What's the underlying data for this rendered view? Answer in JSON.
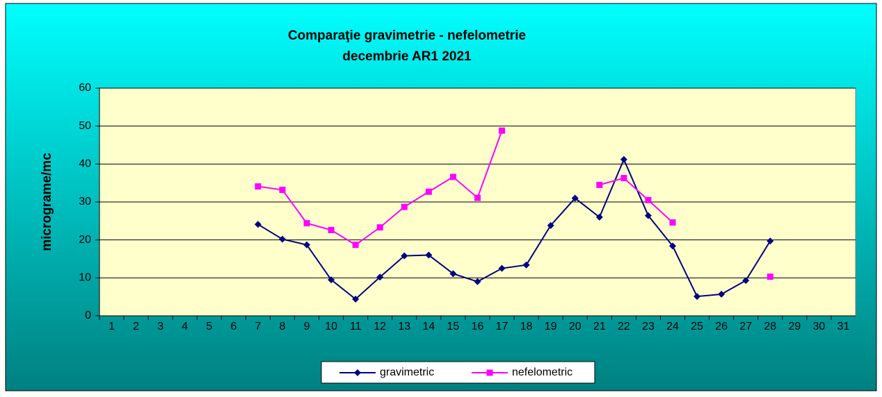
{
  "chart_data": {
    "type": "line",
    "title": [
      "Comparaţie gravimetrie - nefelometrie",
      "decembrie AR1 2021"
    ],
    "ylabel": "micrograme/mc",
    "categories": [
      "1",
      "2",
      "3",
      "4",
      "5",
      "6",
      "7",
      "8",
      "9",
      "10",
      "11",
      "12",
      "13",
      "14",
      "15",
      "16",
      "17",
      "18",
      "19",
      "20",
      "21",
      "22",
      "23",
      "24",
      "25",
      "26",
      "27",
      "28",
      "29",
      "30",
      "31"
    ],
    "series": [
      {
        "name": "gravimetric",
        "color": "#000080",
        "marker": "diamond",
        "values": [
          null,
          null,
          null,
          null,
          null,
          null,
          24.1,
          20.2,
          18.7,
          9.5,
          4.4,
          10.2,
          15.8,
          16,
          11.1,
          9,
          12.5,
          13.4,
          23.8,
          31,
          26,
          41.2,
          26.4,
          18.4,
          5.1,
          5.7,
          9.3,
          19.7,
          null,
          null,
          null
        ]
      },
      {
        "name": "nefelometric",
        "color": "#ff00ff",
        "marker": "square",
        "values": [
          null,
          null,
          null,
          null,
          null,
          null,
          34.1,
          33.2,
          24.4,
          22.6,
          18.7,
          23.3,
          28.7,
          32.7,
          36.6,
          31.1,
          48.8,
          null,
          null,
          null,
          34.5,
          36.3,
          30.5,
          24.6,
          null,
          null,
          null,
          10.3,
          null,
          null,
          null
        ]
      }
    ],
    "ylim": [
      0,
      60
    ],
    "yticks": [
      0,
      10,
      20,
      30,
      40,
      50,
      60
    ],
    "grid": true,
    "legend": "bottom"
  }
}
